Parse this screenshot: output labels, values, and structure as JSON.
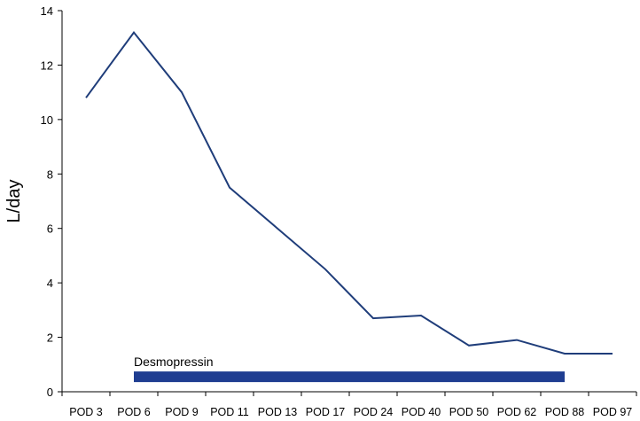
{
  "chart_data": {
    "type": "line",
    "categories": [
      "POD 3",
      "POD 6",
      "POD 9",
      "POD 11",
      "POD 13",
      "POD 17",
      "POD 24",
      "POD 40",
      "POD 50",
      "POD 62",
      "POD 88",
      "POD 97"
    ],
    "series": [
      {
        "values": [
          10.8,
          13.2,
          11.0,
          7.5,
          6.0,
          4.5,
          2.7,
          2.8,
          1.7,
          1.9,
          1.4,
          1.4
        ],
        "color": "#1f3d7a"
      }
    ],
    "title": "",
    "xlabel": "",
    "ylabel": "L/day",
    "ylim": [
      0,
      14
    ],
    "yticks": [
      0,
      2,
      4,
      6,
      8,
      10,
      12,
      14
    ],
    "grid": false,
    "legend": "none",
    "annotations": [
      {
        "label": "Desmopressin",
        "kind": "bar",
        "y": 0.55,
        "x_start_category": "POD 6",
        "x_end_category": "POD 88",
        "color": "#1f3d91"
      }
    ]
  }
}
